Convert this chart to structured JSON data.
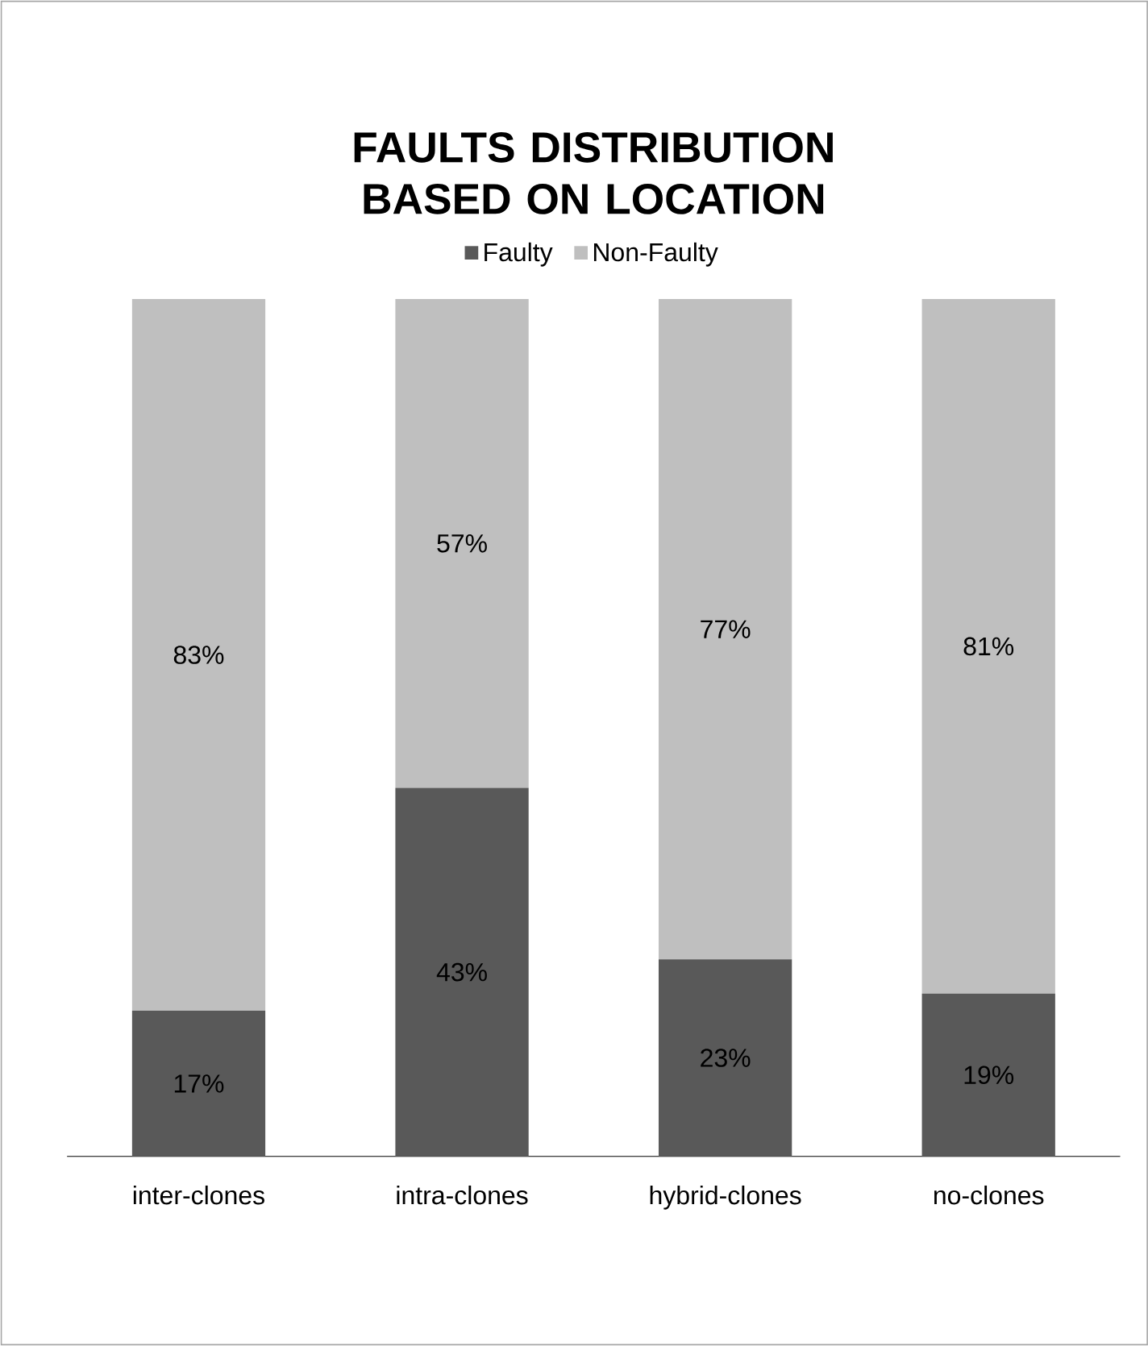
{
  "chart_data": {
    "type": "bar",
    "title": "FAULTS DISTRIBUTION BASED ON LOCATION",
    "categories": [
      "inter-clones",
      "intra-clones",
      "hybrid-clones",
      "no-clones"
    ],
    "stacked": true,
    "tick_labels": "x",
    "legend": "top",
    "series": [
      {
        "name": "Faulty",
        "color": "#595959",
        "values": [
          17,
          43,
          23,
          19
        ],
        "value_labels": [
          "17%",
          "43%",
          "23%",
          "19%"
        ]
      },
      {
        "name": "Non-Faulty",
        "color": "#bfbfbf",
        "values": [
          83,
          57,
          77,
          81
        ],
        "value_labels": [
          "83%",
          "57%",
          "77%",
          "81%"
        ]
      }
    ]
  }
}
